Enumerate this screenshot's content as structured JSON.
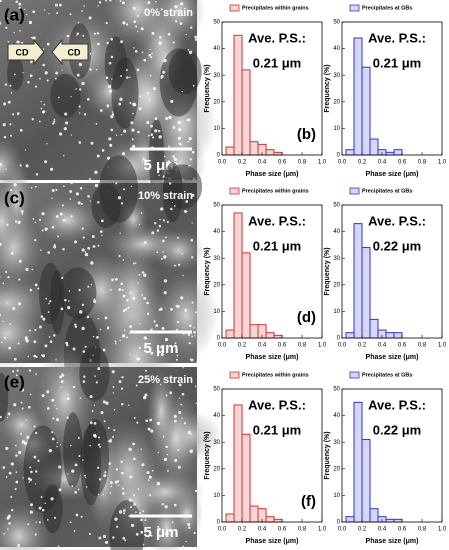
{
  "panels": [
    {
      "label": "(a)",
      "strain": "0% strain",
      "scale_bar": "5 μm"
    },
    {
      "label": "(c)",
      "strain": "10% strain",
      "scale_bar": "5 μm"
    },
    {
      "label": "(e)",
      "strain": "25% strain",
      "scale_bar": "5 μm"
    }
  ],
  "cd_labels": [
    "CD",
    "CD"
  ],
  "chart_data": [
    {
      "type": "histogram",
      "legend": "top",
      "xlabel": "Phase size (μm)",
      "ylabel": "Frequency (%)",
      "annotations": [
        "Ave. P.S.:",
        "0.21 μm"
      ],
      "panel_label": "(b)",
      "bins": [
        0.04,
        0.12,
        0.2,
        0.28,
        0.36,
        0.44,
        0.52,
        0.6
      ],
      "series": [
        {
          "name": "Precipitates within grains",
          "color": "#cc3333",
          "values": [
            3,
            45,
            32,
            5,
            4,
            2,
            1
          ]
        }
      ],
      "xlim": [
        0,
        1
      ],
      "ylim": [
        0,
        50
      ],
      "xticks": [
        {
          "value": 0,
          "label": "0.0"
        },
        {
          "value": 0.2,
          "label": "0.2"
        },
        {
          "value": 0.4,
          "label": "0.4"
        },
        {
          "value": 0.6,
          "label": "0.6"
        },
        {
          "value": 0.8,
          "label": "0.8"
        },
        {
          "value": 1,
          "label": "1.0"
        }
      ],
      "yticks": [
        0,
        10,
        20,
        30,
        40,
        50
      ]
    },
    {
      "type": "histogram",
      "legend": "top",
      "xlabel": "Phase size (μm)",
      "ylabel": "Frequency (%)",
      "annotations": [
        "Ave. P.S.:",
        "0.21 μm"
      ],
      "bins": [
        0.04,
        0.12,
        0.2,
        0.28,
        0.36,
        0.44,
        0.52,
        0.6
      ],
      "series": [
        {
          "name": "Precipitates at GBs",
          "color": "#3333cc",
          "values": [
            2,
            44,
            33,
            6,
            2,
            1,
            2
          ]
        }
      ],
      "xlim": [
        0,
        1
      ],
      "ylim": [
        0,
        50
      ],
      "xticks": [
        {
          "value": 0,
          "label": "0.0"
        },
        {
          "value": 0.2,
          "label": "0.2"
        },
        {
          "value": 0.4,
          "label": "0.4"
        },
        {
          "value": 0.6,
          "label": "0.6"
        },
        {
          "value": 0.8,
          "label": "0.8"
        },
        {
          "value": 1,
          "label": "1.0"
        }
      ],
      "yticks": [
        0,
        10,
        20,
        30,
        40,
        50
      ]
    },
    {
      "type": "histogram",
      "legend": "top",
      "xlabel": "Phase size (μm)",
      "ylabel": "Frequency (%)",
      "annotations": [
        "Ave. P.S.:",
        "0.21 μm"
      ],
      "panel_label": "(d)",
      "bins": [
        0.04,
        0.12,
        0.2,
        0.28,
        0.36,
        0.44,
        0.52,
        0.6
      ],
      "series": [
        {
          "name": "Precipitates within grains",
          "color": "#cc3333",
          "values": [
            3,
            47,
            32,
            5,
            5,
            2,
            1
          ]
        }
      ],
      "xlim": [
        0,
        1
      ],
      "ylim": [
        0,
        50
      ],
      "xticks": [
        {
          "value": 0,
          "label": "0.0"
        },
        {
          "value": 0.2,
          "label": "0.2"
        },
        {
          "value": 0.4,
          "label": "0.4"
        },
        {
          "value": 0.6,
          "label": "0.6"
        },
        {
          "value": 0.8,
          "label": "0.8"
        },
        {
          "value": 1,
          "label": "1.0"
        }
      ],
      "yticks": [
        0,
        10,
        20,
        30,
        40,
        50
      ]
    },
    {
      "type": "histogram",
      "legend": "top",
      "xlabel": "Phase size (μm)",
      "ylabel": "Frequency (%)",
      "annotations": [
        "Ave. P.S.:",
        "0.22 μm"
      ],
      "bins": [
        0.04,
        0.12,
        0.2,
        0.28,
        0.36,
        0.44,
        0.52,
        0.6
      ],
      "series": [
        {
          "name": "Precipitates at GBs",
          "color": "#3333cc",
          "values": [
            2,
            43,
            34,
            7,
            3,
            2,
            2
          ]
        }
      ],
      "xlim": [
        0,
        1
      ],
      "ylim": [
        0,
        50
      ],
      "xticks": [
        {
          "value": 0,
          "label": "0.0"
        },
        {
          "value": 0.2,
          "label": "0.2"
        },
        {
          "value": 0.4,
          "label": "0.4"
        },
        {
          "value": 0.6,
          "label": "0.6"
        },
        {
          "value": 0.8,
          "label": "0.8"
        },
        {
          "value": 1,
          "label": "1.0"
        }
      ],
      "yticks": [
        0,
        10,
        20,
        30,
        40,
        50
      ]
    },
    {
      "type": "histogram",
      "legend": "top",
      "xlabel": "Phase size (μm)",
      "ylabel": "Frequency (%)",
      "annotations": [
        "Ave. P.S.:",
        "0.21 μm"
      ],
      "panel_label": "(f)",
      "bins": [
        0.04,
        0.12,
        0.2,
        0.28,
        0.36,
        0.44,
        0.52,
        0.6
      ],
      "series": [
        {
          "name": "Precipitates within grains",
          "color": "#cc3333",
          "values": [
            3,
            44,
            33,
            6,
            5,
            2,
            1
          ]
        }
      ],
      "xlim": [
        0,
        1
      ],
      "ylim": [
        0,
        50
      ],
      "xticks": [
        {
          "value": 0,
          "label": "0.0"
        },
        {
          "value": 0.2,
          "label": "0.2"
        },
        {
          "value": 0.4,
          "label": "0.4"
        },
        {
          "value": 0.6,
          "label": "0.6"
        },
        {
          "value": 0.8,
          "label": "0.8"
        },
        {
          "value": 1,
          "label": "1.0"
        }
      ],
      "yticks": [
        0,
        10,
        20,
        30,
        40,
        50
      ]
    },
    {
      "type": "histogram",
      "legend": "top",
      "xlabel": "Phase size (μm)",
      "ylabel": "Frequency (%)",
      "annotations": [
        "Ave. P.S.:",
        "0.22 μm"
      ],
      "bins": [
        0.04,
        0.12,
        0.2,
        0.28,
        0.36,
        0.44,
        0.52,
        0.6
      ],
      "series": [
        {
          "name": "Precipitates at GBs",
          "color": "#3333cc",
          "values": [
            2,
            45,
            31,
            5,
            2,
            1,
            1
          ]
        }
      ],
      "xlim": [
        0,
        1
      ],
      "ylim": [
        0,
        50
      ],
      "xticks": [
        {
          "value": 0,
          "label": "0.0"
        },
        {
          "value": 0.2,
          "label": "0.2"
        },
        {
          "value": 0.4,
          "label": "0.4"
        },
        {
          "value": 0.6,
          "label": "0.6"
        },
        {
          "value": 0.8,
          "label": "0.8"
        },
        {
          "value": 1,
          "label": "1.0"
        }
      ],
      "yticks": [
        0,
        10,
        20,
        30,
        40,
        50
      ]
    }
  ]
}
